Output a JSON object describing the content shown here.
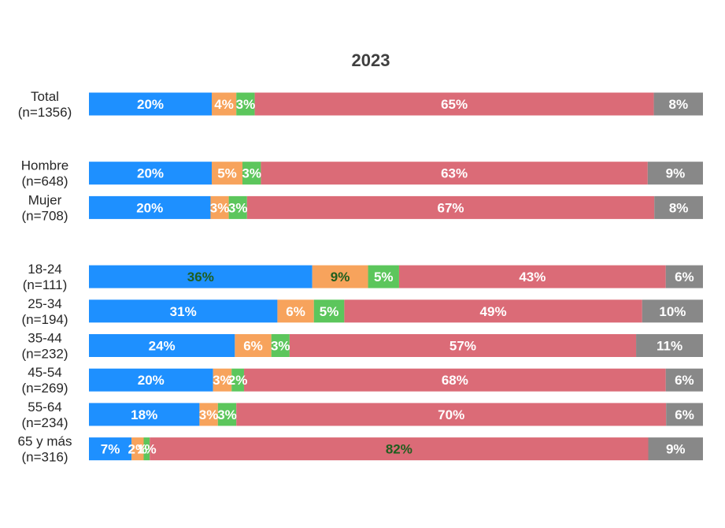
{
  "chart_data": {
    "type": "bar",
    "orientation": "horizontal",
    "stacked": true,
    "title": "2023",
    "legend": "none",
    "grid": false,
    "xlim": [
      0,
      100
    ],
    "colors": [
      "#1E90FF",
      "#F7A35C",
      "#5CC65C",
      "#DB6B77",
      "#888888"
    ],
    "categories": [
      [
        "Total",
        "(n=1356)"
      ],
      [
        "Hombre",
        "(n=648)"
      ],
      [
        "Mujer",
        "(n=708)"
      ],
      [
        "18-24",
        "(n=111)"
      ],
      [
        "25-34",
        "(n=194)"
      ],
      [
        "35-44",
        "(n=232)"
      ],
      [
        "45-54",
        "(n=269)"
      ],
      [
        "55-64",
        "(n=234)"
      ],
      [
        "65 y más",
        "(n=316)"
      ]
    ],
    "groups": [
      [
        0
      ],
      [
        1,
        2
      ],
      [
        3,
        4,
        5,
        6,
        7,
        8
      ]
    ],
    "values": [
      [
        20,
        4,
        3,
        65,
        8
      ],
      [
        20,
        5,
        3,
        63,
        9
      ],
      [
        20,
        3,
        3,
        67,
        8
      ],
      [
        36,
        9,
        5,
        43,
        6
      ],
      [
        31,
        6,
        5,
        49,
        10
      ],
      [
        24,
        6,
        3,
        57,
        11
      ],
      [
        20,
        3,
        2,
        68,
        6
      ],
      [
        18,
        3,
        3,
        70,
        6
      ],
      [
        7,
        2,
        1,
        82,
        9
      ]
    ],
    "labels": [
      [
        "20%",
        "4%",
        "3%",
        "65%",
        "8%"
      ],
      [
        "20%",
        "5%",
        "3%",
        "63%",
        "9%"
      ],
      [
        "20%",
        "3%",
        "3%",
        "67%",
        "8%"
      ],
      [
        "36%",
        "9%",
        "5%",
        "43%",
        "6%"
      ],
      [
        "31%",
        "6%",
        "5%",
        "49%",
        "10%"
      ],
      [
        "24%",
        "6%",
        "3%",
        "57%",
        "11%"
      ],
      [
        "20%",
        "3%",
        "2%",
        "68%",
        "6%"
      ],
      [
        "18%",
        "3%",
        "3%",
        "70%",
        "6%"
      ],
      [
        "7%",
        "2%",
        "1%",
        "82%",
        "9%"
      ]
    ],
    "label_colors": [
      [
        "#ffffff",
        "#ffffff",
        "#ffffff",
        "#ffffff",
        "#ffffff"
      ],
      [
        "#ffffff",
        "#ffffff",
        "#ffffff",
        "#ffffff",
        "#ffffff"
      ],
      [
        "#ffffff",
        "#ffffff",
        "#ffffff",
        "#ffffff",
        "#ffffff"
      ],
      [
        "#1E5E1E",
        "#1E5E1E",
        "#ffffff",
        "#ffffff",
        "#ffffff"
      ],
      [
        "#ffffff",
        "#ffffff",
        "#ffffff",
        "#ffffff",
        "#ffffff"
      ],
      [
        "#ffffff",
        "#ffffff",
        "#ffffff",
        "#ffffff",
        "#ffffff"
      ],
      [
        "#ffffff",
        "#ffffff",
        "#ffffff",
        "#ffffff",
        "#ffffff"
      ],
      [
        "#ffffff",
        "#ffffff",
        "#ffffff",
        "#ffffff",
        "#ffffff"
      ],
      [
        "#ffffff",
        "#ffffff",
        "#ffffff",
        "#1E5E1E",
        "#ffffff"
      ]
    ]
  }
}
